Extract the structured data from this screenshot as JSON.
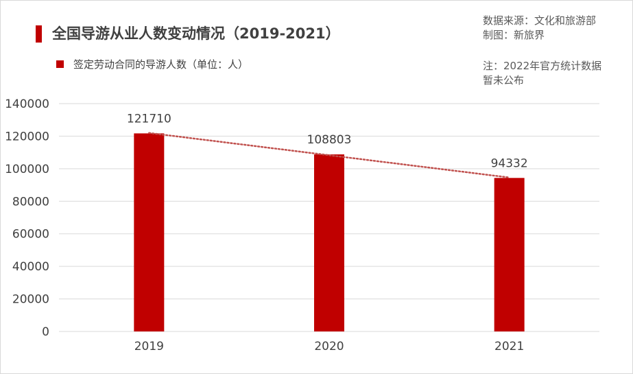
{
  "header": {
    "title": "全国导游从业人数变动情况（2019-2021）",
    "legend_label": "签定劳动合同的导游人数（单位：人）",
    "source_line1": "数据来源：文化和旅游部",
    "source_line2": "制图：新旅界",
    "note_line1": "注：2022年官方统计数据",
    "note_line2": "暂未公布"
  },
  "colors": {
    "bar": "#c00000",
    "trendline": "#c0504d",
    "grid": "#d9d9d9",
    "text": "#404040"
  },
  "chart_data": {
    "type": "bar",
    "categories": [
      "2019",
      "2020",
      "2021"
    ],
    "series": [
      {
        "name": "签定劳动合同的导游人数（单位：人）",
        "values": [
          121710,
          108803,
          94332
        ]
      }
    ],
    "data_labels": [
      "121710",
      "108803",
      "94332"
    ],
    "ylim": [
      0,
      140000
    ],
    "yticks": [
      "0",
      "20000",
      "40000",
      "60000",
      "80000",
      "100000",
      "120000",
      "140000"
    ],
    "grid": true,
    "trendline": "dotted linear"
  }
}
